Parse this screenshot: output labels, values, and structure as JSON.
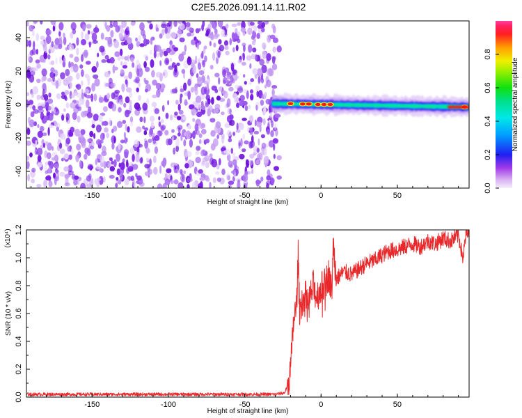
{
  "page_title": "C2E5.2026.091.14.11.R02",
  "colors": {
    "snr_line": "#e8282a",
    "spectrogram_noise": "#7a1fe6",
    "spectrogram_signal": "#ff0000"
  },
  "chart_data": [
    {
      "type": "heatmap",
      "xlabel": "Height of straight line (km)",
      "ylabel": "Frequency (Hz)",
      "xlim": [
        -193,
        97
      ],
      "ylim": [
        -50,
        50
      ],
      "x_ticks": [
        -150,
        -100,
        -50,
        0,
        50
      ],
      "x_tick_labels": [
        "-150",
        "-100",
        "-50",
        "0",
        "50"
      ],
      "y_ticks": [
        -40,
        -20,
        0,
        20,
        40
      ],
      "y_tick_labels": [
        "-40",
        "-20",
        "0",
        "20",
        "40"
      ],
      "colorbar": {
        "label": "Normalized spectral amplitude",
        "range": [
          0,
          1
        ],
        "ticks": [
          0.0,
          0.2,
          0.4,
          0.6,
          0.8
        ],
        "tick_labels": [
          "0.0",
          "0.2",
          "0.4",
          "0.6",
          "0.8"
        ],
        "colormap": "rainbow (violet to red)"
      },
      "noise_region": {
        "x_range": [
          -193,
          -30
        ],
        "amplitude": [
          0.05,
          0.3
        ]
      },
      "signal": {
        "x_range": [
          -32,
          97
        ],
        "center_frequency_start": 0.5,
        "center_frequency_end": -1.5,
        "peak_points": [
          {
            "x": -20,
            "f": 0.5,
            "amplitude": 0.95
          },
          {
            "x": -12,
            "f": 0.3,
            "amplitude": 0.9
          },
          {
            "x": -8,
            "f": 0.3,
            "amplitude": 0.9
          },
          {
            "x": -2,
            "f": 0,
            "amplitude": 0.85
          },
          {
            "x": 2,
            "f": 0,
            "amplitude": 0.85
          },
          {
            "x": 6,
            "f": 0,
            "amplitude": 0.85
          },
          {
            "x": 94,
            "f": -1.5,
            "amplitude": 0.92
          }
        ]
      }
    },
    {
      "type": "line",
      "xlabel": "Height of straight line (km)",
      "ylabel": "SNR (10 * v/v)",
      "y_multiplier_label": "(x10⁴)",
      "xlim": [
        -193,
        97
      ],
      "ylim": [
        0,
        1.2
      ],
      "x_ticks": [
        -150,
        -100,
        -50,
        0,
        50
      ],
      "x_tick_labels": [
        "-150",
        "-100",
        "-50",
        "0",
        "50"
      ],
      "y_ticks": [
        0.0,
        0.2,
        0.4,
        0.6,
        0.8,
        1.0,
        1.2
      ],
      "y_tick_labels": [
        "0.0",
        "0.2",
        "0.4",
        "0.6",
        "0.8",
        "1.0",
        "1.2"
      ],
      "series": [
        {
          "x": [
            -193,
            -150,
            -100,
            -50,
            -30,
            -24,
            -22,
            -20,
            -19,
            -18,
            -17,
            -16,
            -15,
            -14,
            -13,
            -12,
            -10,
            -8,
            -5,
            -3,
            0,
            3,
            5,
            7,
            8,
            10,
            13,
            15,
            20,
            25,
            30,
            35,
            40,
            45,
            50,
            55,
            60,
            65,
            70,
            75,
            80,
            85,
            90,
            93,
            95,
            97
          ],
          "y": [
            0.02,
            0.02,
            0.02,
            0.02,
            0.02,
            0.03,
            0.08,
            0.2,
            0.35,
            0.55,
            0.6,
            0.65,
            1.02,
            0.6,
            0.68,
            0.7,
            0.72,
            0.68,
            0.8,
            0.72,
            0.78,
            0.82,
            0.88,
            0.75,
            1.1,
            0.85,
            0.88,
            0.9,
            0.88,
            0.92,
            0.96,
            0.98,
            1.02,
            1.05,
            1.06,
            1.08,
            1.1,
            1.08,
            1.12,
            1.1,
            1.14,
            1.12,
            1.16,
            1.0,
            1.17,
            1.18
          ]
        }
      ]
    }
  ]
}
